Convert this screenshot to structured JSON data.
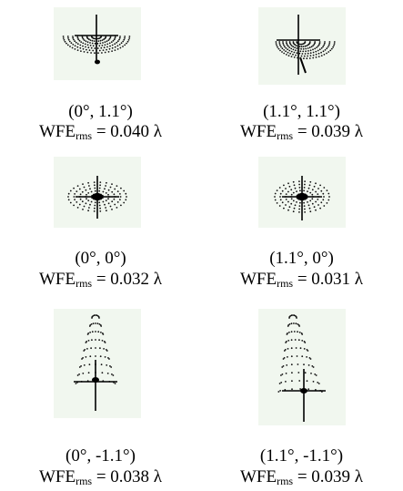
{
  "cells": [
    {
      "coord": "(0°, 1.1°)",
      "prefix": "WFE",
      "sub": "rms",
      "value": "= 0.040 λ",
      "pattern": "top"
    },
    {
      "coord": "(1.1°, 1.1°)",
      "prefix": "WFE",
      "sub": "rms",
      "value": "= 0.039 λ",
      "pattern": "top-skew"
    },
    {
      "coord": "(0°, 0°)",
      "prefix": "WFE",
      "sub": "rms",
      "value": "= 0.032 λ",
      "pattern": "center"
    },
    {
      "coord": "(1.1°, 0°)",
      "prefix": "WFE",
      "sub": "rms",
      "value": "= 0.031 λ",
      "pattern": "center"
    },
    {
      "coord": "(0°, -1.1°)",
      "prefix": "WFE",
      "sub": "rms",
      "value": "= 0.038 λ",
      "pattern": "bottom"
    },
    {
      "coord": "(1.1°, -1.1°)",
      "prefix": "WFE",
      "sub": "rms",
      "value": "= 0.039 λ",
      "pattern": "bottom-skew"
    }
  ]
}
